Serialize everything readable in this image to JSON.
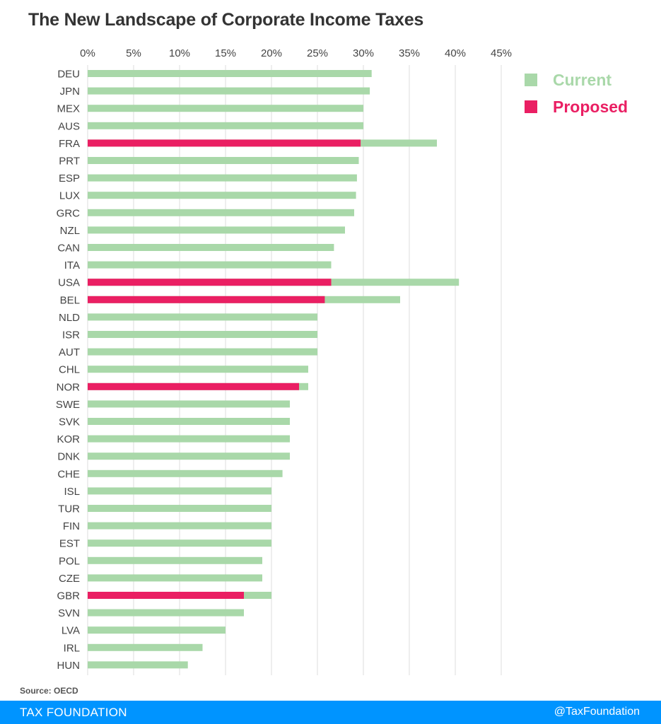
{
  "header": {
    "title": "The New Landscape of Corporate Income Taxes"
  },
  "legend": {
    "current_label": "Current",
    "proposed_label": "Proposed"
  },
  "colors": {
    "current": "#a9d8a9",
    "proposed": "#ea1f63",
    "footer": "#0094ff"
  },
  "source": "Source: OECD",
  "footer": {
    "left": "TAX FOUNDATION",
    "right": "@TaxFoundation"
  },
  "chart_data": {
    "type": "bar",
    "orientation": "horizontal",
    "title": "The New Landscape of Corporate Income Taxes",
    "xlim": [
      0,
      45
    ],
    "x_ticks": [
      0,
      5,
      10,
      15,
      20,
      25,
      30,
      35,
      40,
      45
    ],
    "x_tick_labels": [
      "0%",
      "5%",
      "10%",
      "15%",
      "20%",
      "25%",
      "30%",
      "35%",
      "40%",
      "45%"
    ],
    "grid": true,
    "legend_position": "top-right",
    "categories": [
      "DEU",
      "JPN",
      "MEX",
      "AUS",
      "FRA",
      "PRT",
      "ESP",
      "LUX",
      "GRC",
      "NZL",
      "CAN",
      "ITA",
      "USA",
      "BEL",
      "NLD",
      "ISR",
      "AUT",
      "CHL",
      "NOR",
      "SWE",
      "SVK",
      "KOR",
      "DNK",
      "CHE",
      "ISL",
      "TUR",
      "FIN",
      "EST",
      "POL",
      "CZE",
      "GBR",
      "SVN",
      "LVA",
      "IRL",
      "HUN"
    ],
    "series": [
      {
        "name": "Current",
        "values": [
          30.9,
          30.7,
          30,
          30,
          38,
          29.5,
          29.3,
          29.2,
          29,
          28,
          26.8,
          26.5,
          40.4,
          34,
          25,
          25,
          25,
          24,
          24,
          22,
          22,
          22,
          22,
          21.2,
          20,
          20,
          20,
          20,
          19,
          19,
          20,
          17,
          15,
          12.5,
          10.9
        ]
      },
      {
        "name": "Proposed",
        "values": [
          null,
          null,
          null,
          null,
          29.7,
          null,
          null,
          null,
          null,
          null,
          null,
          null,
          26.5,
          25.8,
          null,
          null,
          null,
          null,
          23,
          null,
          null,
          null,
          null,
          null,
          null,
          null,
          null,
          null,
          null,
          null,
          17,
          null,
          null,
          null,
          null
        ]
      }
    ]
  }
}
